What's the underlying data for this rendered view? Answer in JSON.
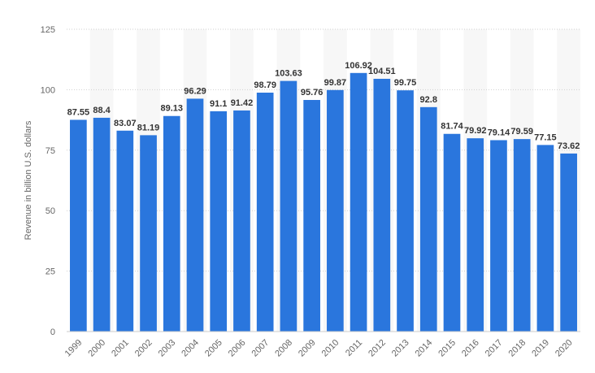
{
  "chart_data": {
    "type": "bar",
    "ylabel": "Revenue in billion U.S. dollars",
    "xlabel": "",
    "ylim": [
      0,
      125
    ],
    "yticks": [
      0,
      25,
      50,
      75,
      100,
      125
    ],
    "grid": true,
    "grid_style": "dotted horizontal lines, alternating shaded column bands",
    "bar_color": "#2a76dd",
    "band_color": "#f7f7f7",
    "categories": [
      "1999",
      "2000",
      "2001",
      "2002",
      "2003",
      "2004",
      "2005",
      "2006",
      "2007",
      "2008",
      "2009",
      "2010",
      "2011",
      "2012",
      "2013",
      "2014",
      "2015",
      "2016",
      "2017",
      "2018",
      "2019",
      "2020"
    ],
    "values": [
      87.55,
      88.4,
      83.07,
      81.19,
      89.13,
      96.29,
      91.1,
      91.42,
      98.79,
      103.63,
      95.76,
      99.87,
      106.92,
      104.51,
      99.75,
      92.8,
      81.74,
      79.92,
      79.14,
      79.59,
      77.15,
      73.62
    ]
  }
}
